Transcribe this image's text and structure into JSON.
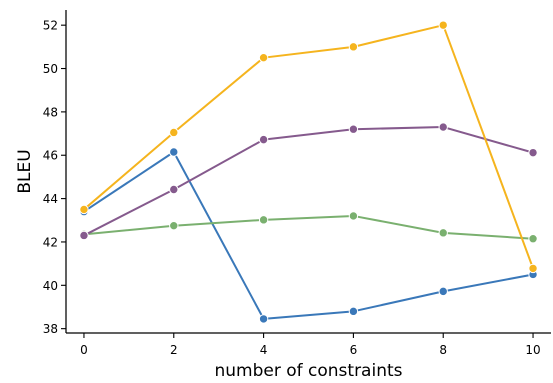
{
  "chart_data": {
    "type": "line",
    "xlabel": "number of constraints",
    "ylabel": "BLEU",
    "x": [
      0,
      2,
      4,
      6,
      8,
      10
    ],
    "xlim": [
      -0.4,
      10.4
    ],
    "ylim": [
      37.8,
      52.7
    ],
    "xticks": [
      "0",
      "2",
      "4",
      "6",
      "8",
      "10"
    ],
    "yticks": [
      "38",
      "40",
      "42",
      "44",
      "46",
      "48",
      "50",
      "52"
    ],
    "grid": false,
    "series": [
      {
        "color": "#3a78b9",
        "values": [
          43.4,
          46.15,
          38.45,
          38.8,
          39.72,
          40.5
        ]
      },
      {
        "color": "#7ab06f",
        "values": [
          42.35,
          42.75,
          43.02,
          43.2,
          42.42,
          42.15
        ]
      },
      {
        "color": "#855a8d",
        "values": [
          42.3,
          44.42,
          46.72,
          47.2,
          47.3,
          46.12
        ]
      },
      {
        "color": "#f5b41e",
        "values": [
          43.5,
          47.05,
          50.5,
          51.0,
          52.0,
          40.78
        ]
      }
    ]
  }
}
